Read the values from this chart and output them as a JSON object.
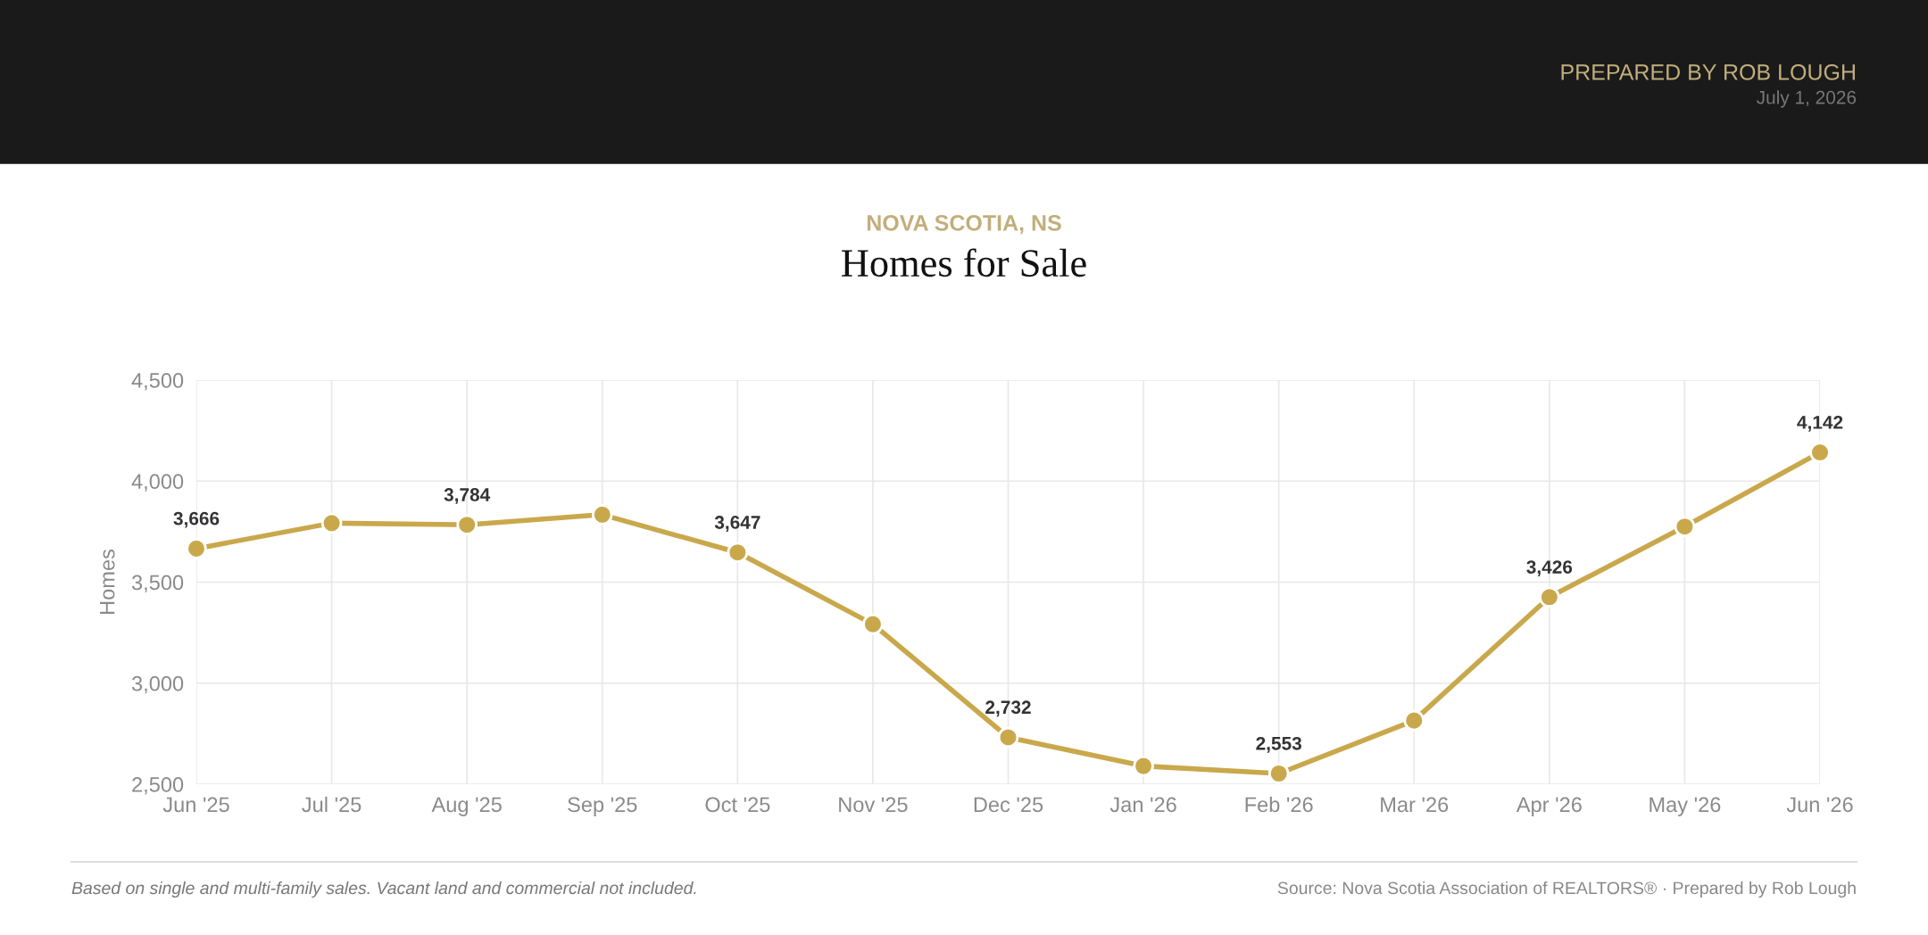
{
  "chart_data": {
    "type": "line",
    "subtitle": "NOVA SCOTIA, NS",
    "title": "Homes for Sale",
    "ylabel": "Homes",
    "categories": [
      "Jun '25",
      "Jul '25",
      "Aug '25",
      "Sep '25",
      "Oct '25",
      "Nov '25",
      "Dec '25",
      "Jan '26",
      "Feb '26",
      "Mar '26",
      "Apr '26",
      "May '26",
      "Jun '26"
    ],
    "series": [
      {
        "color": "#c9a84c",
        "values": [
          3666,
          3792,
          3784,
          3834,
          3647,
          3292,
          2732,
          2590,
          2553,
          2815,
          3426,
          3775,
          4142
        ],
        "value_labels": [
          "3,666",
          null,
          "3,784",
          null,
          "3,647",
          null,
          "2,732",
          null,
          "2,553",
          null,
          "3,426",
          null,
          "4,142"
        ]
      }
    ],
    "ylim": [
      2500,
      4500
    ],
    "yticks": [
      {
        "value": 2500,
        "label": "2,500"
      },
      {
        "value": 3000,
        "label": "3,000"
      },
      {
        "value": 3500,
        "label": "3,500"
      },
      {
        "value": 4000,
        "label": "4,000"
      },
      {
        "value": 4500,
        "label": "4,500"
      }
    ],
    "grid": true,
    "marker": "circle",
    "line_style": "solid",
    "annotations": [
      "PREPARED BY ROB LOUGH",
      "July 1, 2026",
      "Based on single and multi-family sales. Vacant land and commercial not included.",
      "Source: Nova Scotia Association of REALTORS® · Prepared by Rob Lough"
    ]
  }
}
